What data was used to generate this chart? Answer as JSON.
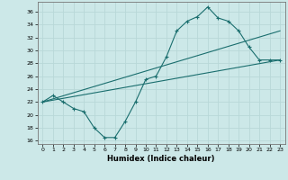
{
  "xlabel": "Humidex (Indice chaleur)",
  "bg_color": "#cce8e8",
  "grid_color": "#b8d8d8",
  "line_color": "#1a6e6e",
  "xlim": [
    -0.5,
    23.5
  ],
  "ylim": [
    15.5,
    37.5
  ],
  "xtick_labels": [
    "0",
    "1",
    "2",
    "3",
    "4",
    "5",
    "6",
    "7",
    "8",
    "9",
    "10",
    "11",
    "12",
    "13",
    "14",
    "15",
    "16",
    "17",
    "18",
    "19",
    "20",
    "21",
    "22",
    "23"
  ],
  "xtick_vals": [
    0,
    1,
    2,
    3,
    4,
    5,
    6,
    7,
    8,
    9,
    10,
    11,
    12,
    13,
    14,
    15,
    16,
    17,
    18,
    19,
    20,
    21,
    22,
    23
  ],
  "ytick_vals": [
    16,
    18,
    20,
    22,
    24,
    26,
    28,
    30,
    32,
    34,
    36
  ],
  "curve_x": [
    0,
    1,
    2,
    3,
    4,
    5,
    6,
    7,
    8,
    9,
    10,
    11,
    12,
    13,
    14,
    15,
    16,
    17,
    18,
    19,
    20,
    21,
    22,
    23
  ],
  "curve_y": [
    22,
    23,
    22,
    21,
    20.5,
    18,
    16.5,
    16.5,
    19,
    22,
    25.5,
    26,
    29,
    33,
    34.5,
    35.2,
    36.7,
    35,
    34.5,
    33,
    30.5,
    28.5,
    28.5,
    28.5
  ],
  "trend1_x": [
    0,
    23
  ],
  "trend1_y": [
    22.0,
    33.0
  ],
  "trend2_x": [
    0,
    23
  ],
  "trend2_y": [
    22.0,
    28.5
  ]
}
